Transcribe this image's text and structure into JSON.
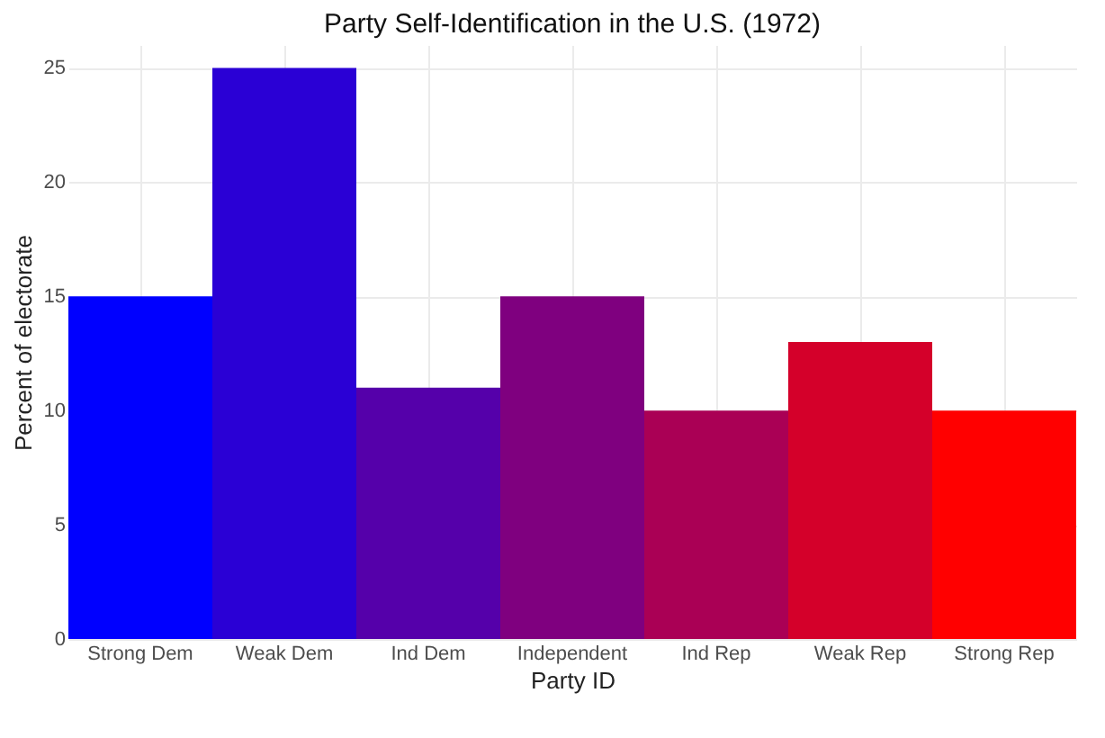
{
  "chart_data": {
    "type": "bar",
    "title": "Party Self-Identification in the U.S. (1972)",
    "xlabel": "Party ID",
    "ylabel": "Percent of electorate",
    "categories": [
      "Strong Dem",
      "Weak Dem",
      "Ind Dem",
      "Independent",
      "Ind Rep",
      "Weak Rep",
      "Strong Rep"
    ],
    "values": [
      15,
      25,
      11,
      15,
      10,
      13,
      10
    ],
    "colors": [
      "#0000ff",
      "#2a00d5",
      "#5500aa",
      "#7f007f",
      "#aa0055",
      "#d4002a",
      "#ff0000"
    ],
    "ylim": [
      0,
      26
    ],
    "yticks": [
      0,
      5,
      10,
      15,
      20,
      25
    ],
    "grid": true,
    "legend": false
  }
}
